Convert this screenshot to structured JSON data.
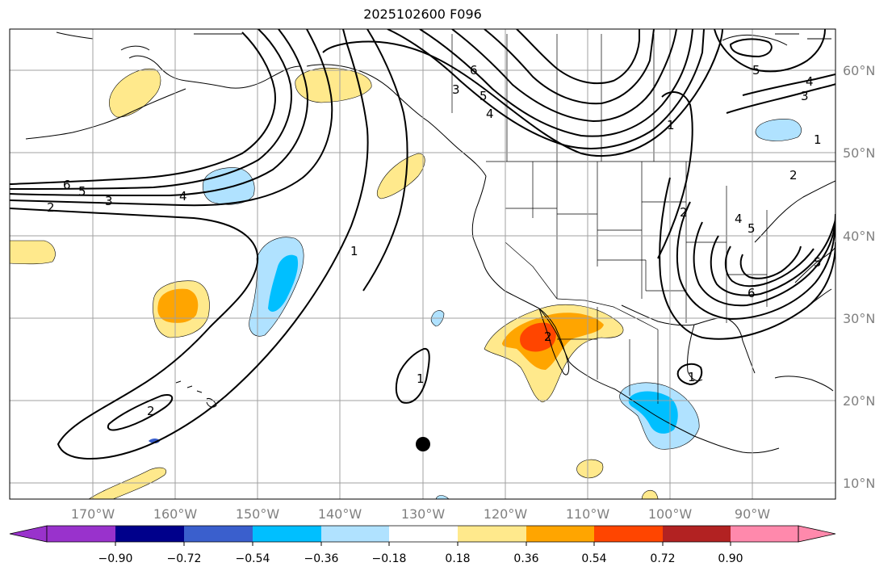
{
  "title": "2025102600 F096",
  "longitude_ticks": [
    "170°W",
    "160°W",
    "150°W",
    "140°W",
    "130°W",
    "120°W",
    "110°W",
    "100°W",
    "90°W"
  ],
  "latitude_ticks": [
    "60°N",
    "50°N",
    "40°N",
    "30°N",
    "20°N",
    "10°N"
  ],
  "colorbar": {
    "labels": [
      "−0.90",
      "−0.72",
      "−0.54",
      "−0.36",
      "−0.18",
      "0.18",
      "0.36",
      "0.54",
      "0.72",
      "0.90"
    ],
    "colors": [
      "#9932cc",
      "#00008b",
      "#3a5fcd",
      "#00bfff",
      "#b0e2ff",
      "#ffffff",
      "#ffe98c",
      "#ffa500",
      "#ff4500",
      "#b22222",
      "#ff89ac"
    ]
  },
  "contour_labels": {
    "c1": "1",
    "c2": "2",
    "c3": "3",
    "c4": "4",
    "c5": "5",
    "c6": "6"
  },
  "colors": {
    "fill_light_yellow": "#ffe98c",
    "fill_orange": "#ffa500",
    "fill_red_orange": "#ff4500",
    "fill_light_blue": "#b0e2ff",
    "fill_deep_sky_blue": "#00bfff",
    "contour": "#000000",
    "grid": "#a0a0a0"
  }
}
